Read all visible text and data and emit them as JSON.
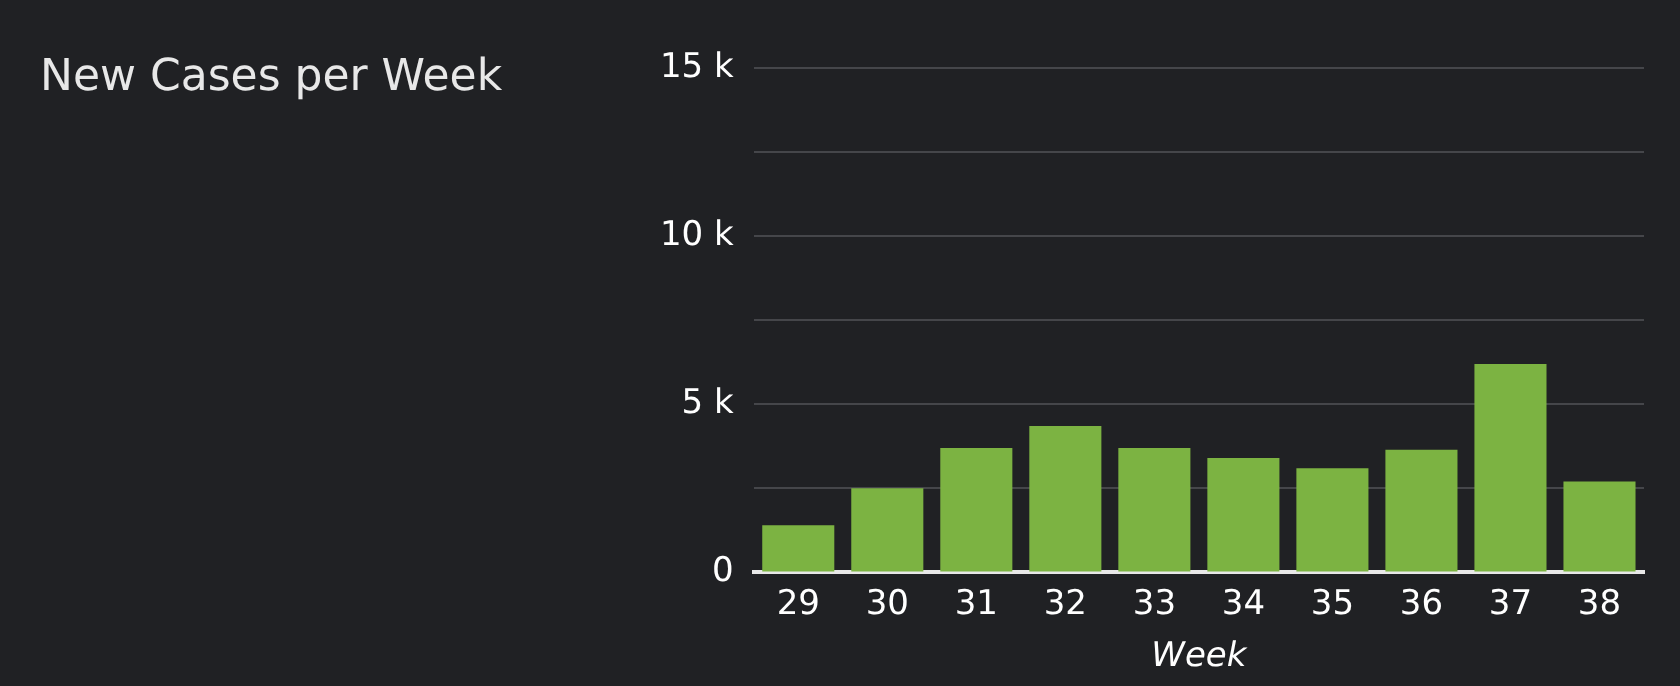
{
  "chart_data": {
    "type": "bar",
    "title": "New Cases per Week",
    "xlabel": "Week",
    "categories": [
      "29",
      "30",
      "31",
      "32",
      "33",
      "34",
      "35",
      "36",
      "37",
      "38"
    ],
    "values": [
      1400,
      2500,
      3700,
      4350,
      3700,
      3400,
      3100,
      3650,
      6200,
      2700
    ],
    "color": "#7cb342",
    "ylim": [
      0,
      15000
    ],
    "yticks": [
      {
        "value": 0,
        "label": "0"
      },
      {
        "value": 2500,
        "label": null
      },
      {
        "value": 5000,
        "label": "5 k"
      },
      {
        "value": 7500,
        "label": null
      },
      {
        "value": 10000,
        "label": "10 k"
      },
      {
        "value": 12500,
        "label": null
      },
      {
        "value": 15000,
        "label": "15 k"
      }
    ],
    "grid": "y",
    "legend": false
  }
}
